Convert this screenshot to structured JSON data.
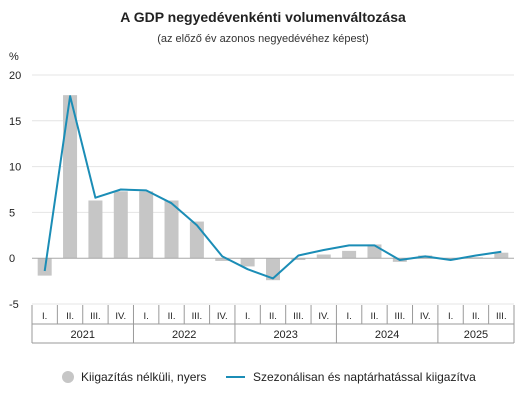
{
  "chart_data": {
    "type": "bar",
    "title": "A GDP negyedévenkénti volumenváltozása",
    "subtitle": "(az előző év azonos negyedévéhez képest)",
    "ylabel": "%",
    "ylim": [
      -5,
      20
    ],
    "yticks": [
      "-5",
      "0",
      "5",
      "10",
      "15",
      "20"
    ],
    "ytick_values": [
      -5,
      0,
      5,
      10,
      15,
      20
    ],
    "grid": true,
    "legend_position": "bottom",
    "categories": [
      "I.",
      "II.",
      "III.",
      "IV.",
      "I.",
      "II.",
      "III.",
      "IV.",
      "I.",
      "II.",
      "III.",
      "IV.",
      "I.",
      "II.",
      "III.",
      "IV.",
      "I.",
      "II.",
      "III."
    ],
    "years": [
      {
        "label": "2021",
        "start": 0,
        "end": 3
      },
      {
        "label": "2022",
        "start": 4,
        "end": 7
      },
      {
        "label": "2023",
        "start": 8,
        "end": 11
      },
      {
        "label": "2024",
        "start": 12,
        "end": 15
      },
      {
        "label": "2025",
        "start": 16,
        "end": 18
      }
    ],
    "series": [
      {
        "name": "Kiigazítás nélküli, nyers",
        "type": "bar",
        "color": "#c6c6c6",
        "values": [
          -1.9,
          17.8,
          6.3,
          7.3,
          7.3,
          6.3,
          4.0,
          -0.3,
          -0.9,
          -2.4,
          -0.2,
          0.4,
          0.8,
          1.5,
          -0.4,
          0.3,
          -0.2,
          0.1,
          0.6
        ]
      },
      {
        "name": "Szezonálisan és naptárhatással kiigazítva",
        "type": "line",
        "color": "#1b8db6",
        "values": [
          -1.4,
          17.7,
          6.6,
          7.5,
          7.4,
          6.0,
          3.6,
          0.2,
          -1.2,
          -2.2,
          0.3,
          0.9,
          1.4,
          1.4,
          -0.2,
          0.2,
          -0.2,
          0.3,
          0.7
        ]
      }
    ]
  }
}
